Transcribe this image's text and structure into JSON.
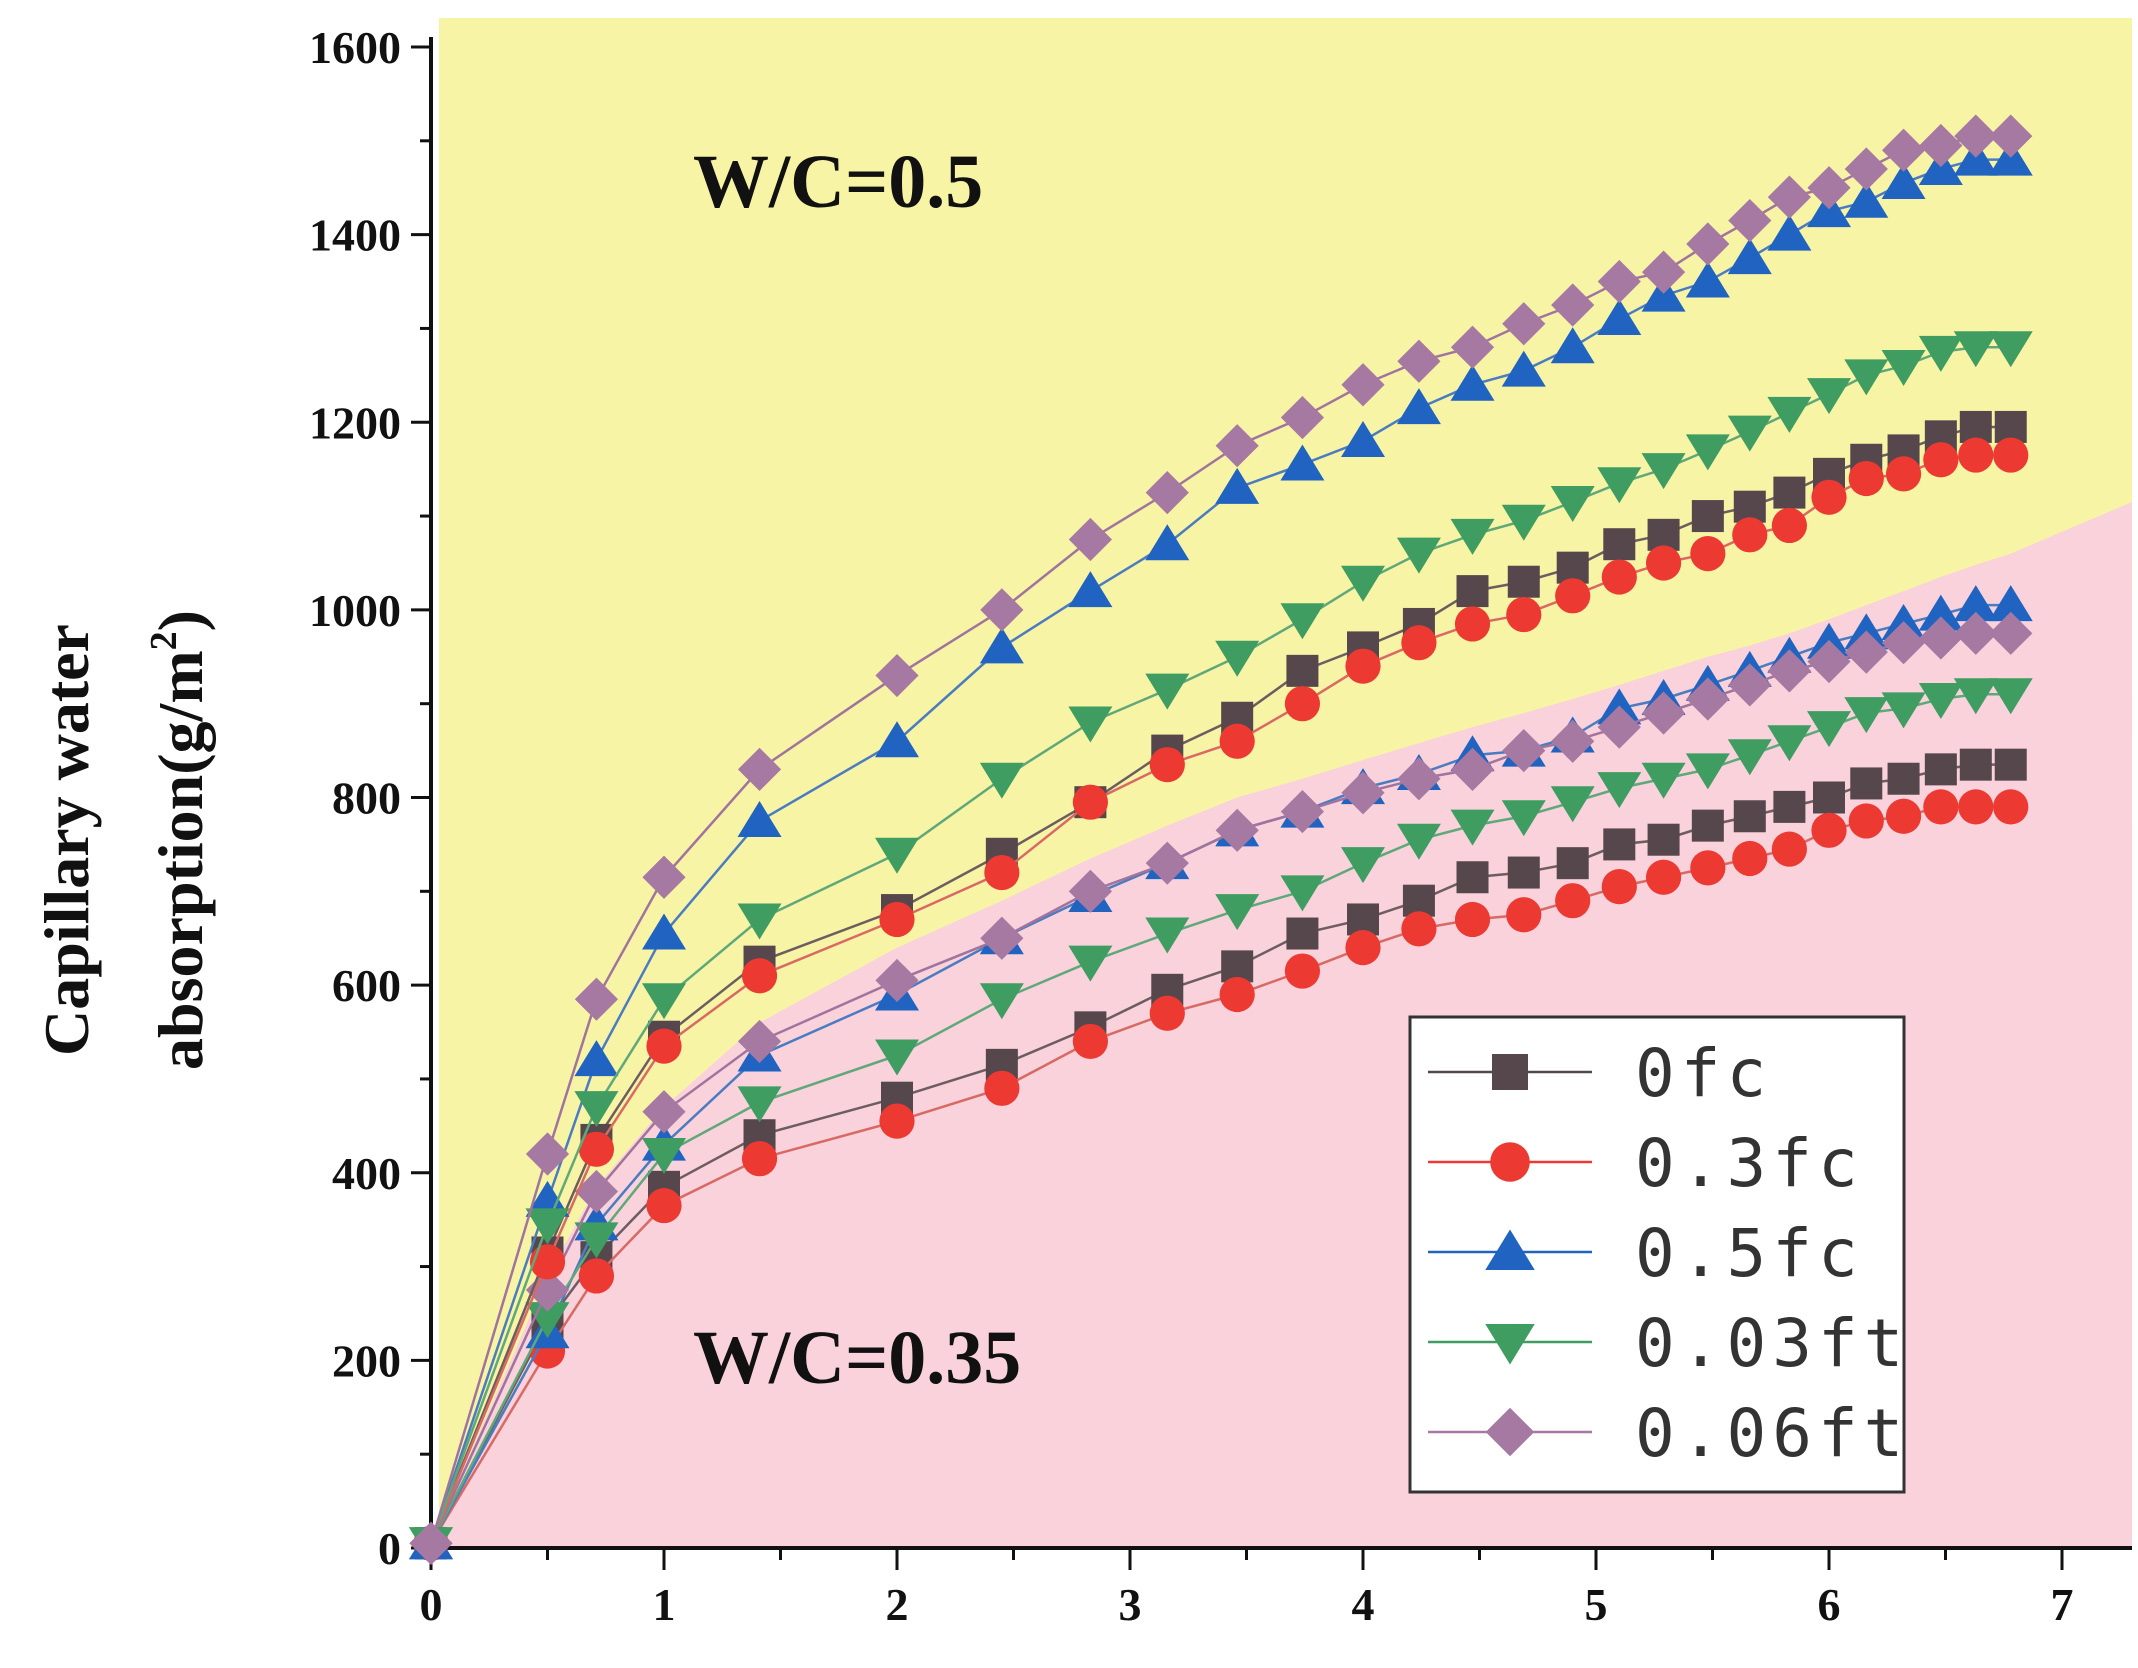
{
  "chart_data": {
    "type": "line",
    "title": "",
    "xlabel": "",
    "ylabel_parts": [
      "Capillary water",
      "absorption(g/m",
      "2",
      ")"
    ],
    "xlim": [
      0,
      7.3
    ],
    "ylim": [
      0,
      1600
    ],
    "x_ticks": [
      0,
      1,
      2,
      3,
      4,
      5,
      6,
      7
    ],
    "y_ticks": [
      0,
      200,
      400,
      600,
      800,
      1000,
      1200,
      1400,
      1600
    ],
    "grid": false,
    "legend_position": "bottom-right",
    "annotations": [
      "W/C=0.5",
      "W/C=0.35"
    ],
    "regions": [
      {
        "name": "W/C=0.5",
        "color": "#f8f4a6"
      },
      {
        "name": "W/C=0.35",
        "color": "#f9d2dc"
      }
    ],
    "x": [
      0,
      0.5,
      0.71,
      1.0,
      1.41,
      2.0,
      2.45,
      2.83,
      3.16,
      3.46,
      3.74,
      4.0,
      4.24,
      4.47,
      4.69,
      4.9,
      5.1,
      5.29,
      5.48,
      5.66,
      5.83,
      6.0,
      6.16,
      6.32,
      6.48,
      6.63,
      6.78
    ],
    "series": [
      {
        "name": "0fc",
        "group": "W/C=0.5",
        "marker": "square",
        "color": "#55474b",
        "line_color": "#6d5d60",
        "values": [
          5,
          315,
          435,
          545,
          625,
          680,
          740,
          795,
          850,
          885,
          935,
          960,
          985,
          1020,
          1030,
          1045,
          1070,
          1080,
          1100,
          1110,
          1125,
          1145,
          1160,
          1170,
          1185,
          1195,
          1195
        ]
      },
      {
        "name": "0.3fc",
        "group": "W/C=0.5",
        "marker": "circle",
        "color": "#ec3a32",
        "line_color": "#d86a63",
        "values": [
          5,
          305,
          425,
          535,
          610,
          670,
          720,
          795,
          835,
          860,
          900,
          940,
          965,
          985,
          995,
          1015,
          1035,
          1050,
          1060,
          1080,
          1090,
          1120,
          1140,
          1145,
          1160,
          1165,
          1165
        ]
      },
      {
        "name": "0.5fc",
        "group": "W/C=0.5",
        "marker": "triangle-up",
        "color": "#2063c0",
        "line_color": "#4b7cc0",
        "values": [
          5,
          370,
          520,
          655,
          775,
          860,
          960,
          1020,
          1070,
          1130,
          1155,
          1180,
          1215,
          1240,
          1255,
          1280,
          1310,
          1335,
          1350,
          1375,
          1400,
          1425,
          1435,
          1455,
          1470,
          1480,
          1480
        ]
      },
      {
        "name": "0.03ft",
        "group": "W/C=0.5",
        "marker": "triangle-down",
        "color": "#3f9d62",
        "line_color": "#5fa87a",
        "values": [
          5,
          345,
          470,
          585,
          670,
          740,
          820,
          880,
          915,
          950,
          990,
          1030,
          1060,
          1080,
          1095,
          1115,
          1135,
          1150,
          1170,
          1190,
          1210,
          1230,
          1250,
          1260,
          1275,
          1280,
          1280
        ]
      },
      {
        "name": "0.06ft",
        "group": "W/C=0.5",
        "marker": "diamond",
        "color": "#a679a2",
        "line_color": "#a0749d",
        "values": [
          5,
          420,
          585,
          715,
          830,
          930,
          1000,
          1075,
          1125,
          1175,
          1205,
          1240,
          1265,
          1280,
          1305,
          1325,
          1350,
          1360,
          1390,
          1415,
          1440,
          1450,
          1470,
          1490,
          1495,
          1505,
          1505
        ]
      },
      {
        "name": "0fc",
        "group": "W/C=0.35",
        "marker": "square",
        "color": "#55474b",
        "line_color": "#6d5d60",
        "values": [
          5,
          240,
          310,
          385,
          440,
          480,
          515,
          555,
          595,
          620,
          655,
          670,
          690,
          715,
          720,
          730,
          750,
          755,
          770,
          780,
          790,
          800,
          815,
          820,
          830,
          835,
          835
        ]
      },
      {
        "name": "0.3fc",
        "group": "W/C=0.35",
        "marker": "circle",
        "color": "#ec3a32",
        "line_color": "#d86a63",
        "values": [
          5,
          210,
          290,
          365,
          415,
          455,
          490,
          540,
          570,
          590,
          615,
          640,
          660,
          670,
          675,
          690,
          705,
          715,
          725,
          735,
          745,
          765,
          775,
          780,
          790,
          790,
          790
        ]
      },
      {
        "name": "0.5fc",
        "group": "W/C=0.35",
        "marker": "triangle-up",
        "color": "#2063c0",
        "line_color": "#4b7cc0",
        "values": [
          5,
          230,
          345,
          430,
          525,
          590,
          650,
          695,
          730,
          765,
          785,
          810,
          825,
          845,
          850,
          865,
          895,
          905,
          920,
          935,
          950,
          965,
          975,
          985,
          995,
          1005,
          1005
        ]
      },
      {
        "name": "0.03ft",
        "group": "W/C=0.35",
        "marker": "triangle-down",
        "color": "#3f9d62",
        "line_color": "#5fa87a",
        "values": [
          5,
          245,
          330,
          420,
          475,
          525,
          585,
          625,
          655,
          680,
          700,
          730,
          755,
          770,
          780,
          795,
          810,
          820,
          830,
          845,
          860,
          875,
          890,
          895,
          905,
          910,
          910
        ]
      },
      {
        "name": "0.06ft",
        "group": "W/C=0.35",
        "marker": "diamond",
        "color": "#a679a2",
        "line_color": "#a0749d",
        "values": [
          5,
          275,
          380,
          465,
          540,
          605,
          650,
          700,
          730,
          765,
          785,
          805,
          820,
          830,
          850,
          860,
          875,
          890,
          905,
          920,
          935,
          945,
          955,
          965,
          970,
          975,
          975
        ]
      }
    ],
    "legend": [
      {
        "label": "0fc",
        "marker": "square",
        "color": "#55474b"
      },
      {
        "label": "0.3fc",
        "marker": "circle",
        "color": "#ec3a32"
      },
      {
        "label": "0.5fc",
        "marker": "triangle-up",
        "color": "#2063c0"
      },
      {
        "label": "0.03ft",
        "marker": "triangle-down",
        "color": "#3f9d62"
      },
      {
        "label": "0.06ft",
        "marker": "diamond",
        "color": "#a679a2"
      }
    ]
  }
}
